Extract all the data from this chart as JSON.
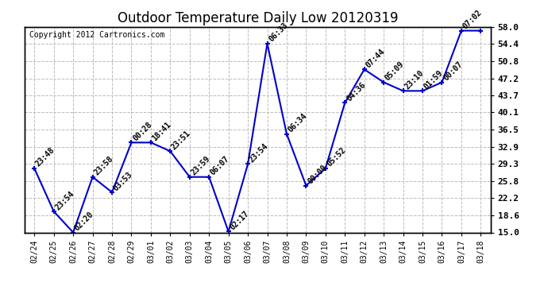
{
  "title": "Outdoor Temperature Daily Low 20120319",
  "copyright": "Copyright 2012 Cartronics.com",
  "x_labels": [
    "02/24",
    "02/25",
    "02/26",
    "02/27",
    "02/28",
    "02/29",
    "03/01",
    "03/02",
    "03/03",
    "03/04",
    "03/05",
    "03/06",
    "03/07",
    "03/08",
    "03/09",
    "03/10",
    "03/11",
    "03/12",
    "03/13",
    "03/14",
    "03/15",
    "03/16",
    "03/17",
    "03/18"
  ],
  "y_values": [
    28.4,
    19.4,
    15.0,
    26.6,
    23.4,
    33.8,
    33.8,
    32.0,
    26.6,
    26.6,
    15.2,
    29.3,
    54.5,
    35.6,
    24.8,
    28.4,
    42.1,
    49.1,
    46.4,
    44.6,
    44.6,
    46.4,
    57.2,
    57.2
  ],
  "annotations": [
    "23:48",
    "23:54",
    "02:20",
    "23:58",
    "03:53",
    "00:28",
    "18:41",
    "23:51",
    "23:59",
    "06:07",
    "02:17",
    "23:54",
    "06:33",
    "06:34",
    "00:00",
    "05:52",
    "04:36",
    "07:44",
    "05:09",
    "23:10",
    "01:59",
    "00:07",
    "07:02",
    ""
  ],
  "ylim_min": 15.0,
  "ylim_max": 58.0,
  "yticks": [
    15.0,
    18.6,
    22.2,
    25.8,
    29.3,
    32.9,
    36.5,
    40.1,
    43.7,
    47.2,
    50.8,
    54.4,
    58.0
  ],
  "line_color": "#0000cc",
  "marker_color": "#0000cc",
  "bg_color": "#ffffff",
  "grid_color": "#bbbbbb",
  "title_fontsize": 12,
  "annot_fontsize": 7,
  "copyright_fontsize": 7,
  "tick_fontsize": 8,
  "xlabel_fontsize": 7
}
